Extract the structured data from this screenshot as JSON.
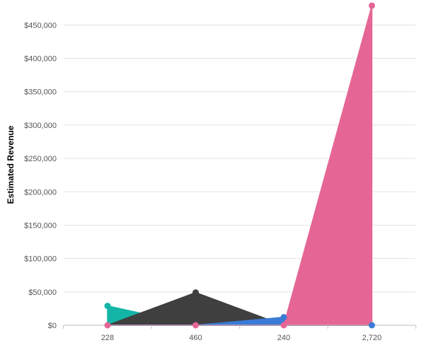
{
  "chart_data": {
    "type": "area",
    "ylabel": "Estimated Revenue",
    "xlabel": "",
    "categories": [
      "228",
      "460",
      "240",
      "2,720"
    ],
    "ylim": [
      0,
      480000
    ],
    "yticks": [
      0,
      50000,
      100000,
      150000,
      200000,
      250000,
      300000,
      350000,
      400000,
      450000
    ],
    "ytick_labels": [
      "$0",
      "$50,000",
      "$100,000",
      "$150,000",
      "$200,000",
      "$250,000",
      "$300,000",
      "$350,000",
      "$400,000",
      "$450,000"
    ],
    "grid": true,
    "legend": "none",
    "series": [
      {
        "color": "#13b5a6",
        "values": [
          29000,
          0,
          0,
          0
        ]
      },
      {
        "color": "#3f3f3f",
        "values": [
          0,
          49000,
          0,
          0
        ]
      },
      {
        "color": "#3a7bd5",
        "values": [
          0,
          0,
          12000,
          0
        ]
      },
      {
        "color": "#e56694",
        "values": [
          0,
          0,
          0,
          479000
        ]
      }
    ]
  }
}
